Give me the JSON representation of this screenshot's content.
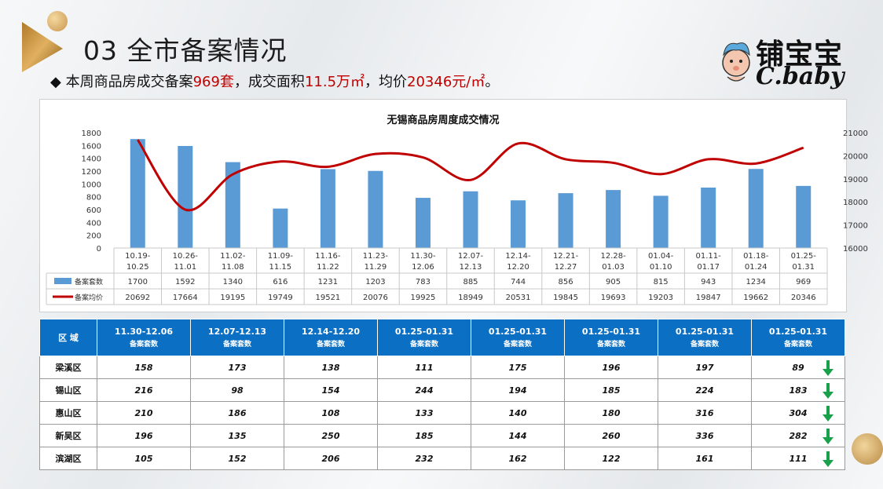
{
  "header": {
    "title": "03 全市备案情况",
    "summary_prefix": "◆ 本周商品房成交备案",
    "summary_units": "969套",
    "summary_mid": "，成交面积",
    "summary_area": "11.5万㎡",
    "summary_mid2": "，均价",
    "summary_price": "20346元/㎡",
    "summary_end": "。"
  },
  "logo": {
    "cn": "铺宝宝",
    "en": "C.baby"
  },
  "colors": {
    "bar": "#5b9bd5",
    "line": "#c00000",
    "table_header": "#0b6fc4",
    "arrow": "#19a04b"
  },
  "chart_data": {
    "type": "bar",
    "title": "无锡商品房周度成交情况",
    "categories": [
      [
        "10.19-",
        "10.25"
      ],
      [
        "10.26-",
        "11.01"
      ],
      [
        "11.02-",
        "11.08"
      ],
      [
        "11.09-",
        "11.15"
      ],
      [
        "11.16-",
        "11.22"
      ],
      [
        "11.23-",
        "11.29"
      ],
      [
        "11.30-",
        "12.06"
      ],
      [
        "12.07-",
        "12.13"
      ],
      [
        "12.14-",
        "12.20"
      ],
      [
        "12.21-",
        "12.27"
      ],
      [
        "12.28-",
        "01.03"
      ],
      [
        "01.04-",
        "01.10"
      ],
      [
        "01.11-",
        "01.17"
      ],
      [
        "01.18-",
        "01.24"
      ],
      [
        "01.25-",
        "01.31"
      ]
    ],
    "series": [
      {
        "name": "备案套数",
        "type": "bar",
        "axis": "left",
        "values": [
          1700,
          1592,
          1340,
          616,
          1231,
          1203,
          783,
          885,
          744,
          856,
          905,
          815,
          943,
          1234,
          969
        ]
      },
      {
        "name": "备案均价",
        "type": "line",
        "axis": "right",
        "values": [
          20692,
          17664,
          19195,
          19749,
          19521,
          20076,
          19925,
          18949,
          20531,
          19845,
          19693,
          19203,
          19847,
          19662,
          20346
        ]
      }
    ],
    "ylim_left": [
      0,
      1800
    ],
    "yticks_left": [
      0,
      200,
      400,
      600,
      800,
      1000,
      1200,
      1400,
      1600,
      1800
    ],
    "ylim_right": [
      16000,
      21000
    ],
    "yticks_right": [
      16000,
      17000,
      18000,
      19000,
      20000,
      21000
    ],
    "legend": "data-table"
  },
  "region_table": {
    "header_region": "区 域",
    "columns": [
      {
        "period": "11.30-12.06",
        "label": "备案套数"
      },
      {
        "period": "12.07-12.13",
        "label": "备案套数"
      },
      {
        "period": "12.14-12.20",
        "label": "备案套数"
      },
      {
        "period": "01.25-01.31",
        "label": "备案套数"
      },
      {
        "period": "01.25-01.31",
        "label": "备案套数"
      },
      {
        "period": "01.25-01.31",
        "label": "备案套数"
      },
      {
        "period": "01.25-01.31",
        "label": "备案套数"
      },
      {
        "period": "01.25-01.31",
        "label": "备案套数"
      }
    ],
    "rows": [
      {
        "region": "梁溪区",
        "values": [
          "158",
          "173",
          "138",
          "111",
          "175",
          "196",
          "197",
          "89"
        ],
        "trend": "down"
      },
      {
        "region": "锡山区",
        "values": [
          "216",
          "98",
          "154",
          "244",
          "194",
          "185",
          "224",
          "183"
        ],
        "trend": "down"
      },
      {
        "region": "惠山区",
        "values": [
          "210",
          "186",
          "108",
          "133",
          "140",
          "180",
          "316",
          "304"
        ],
        "trend": "down"
      },
      {
        "region": "新吴区",
        "values": [
          "196",
          "135",
          "250",
          "185",
          "144",
          "260",
          "336",
          "282"
        ],
        "trend": "down"
      },
      {
        "region": "滨湖区",
        "values": [
          "105",
          "152",
          "206",
          "232",
          "162",
          "122",
          "161",
          "111"
        ],
        "trend": "down"
      }
    ]
  }
}
